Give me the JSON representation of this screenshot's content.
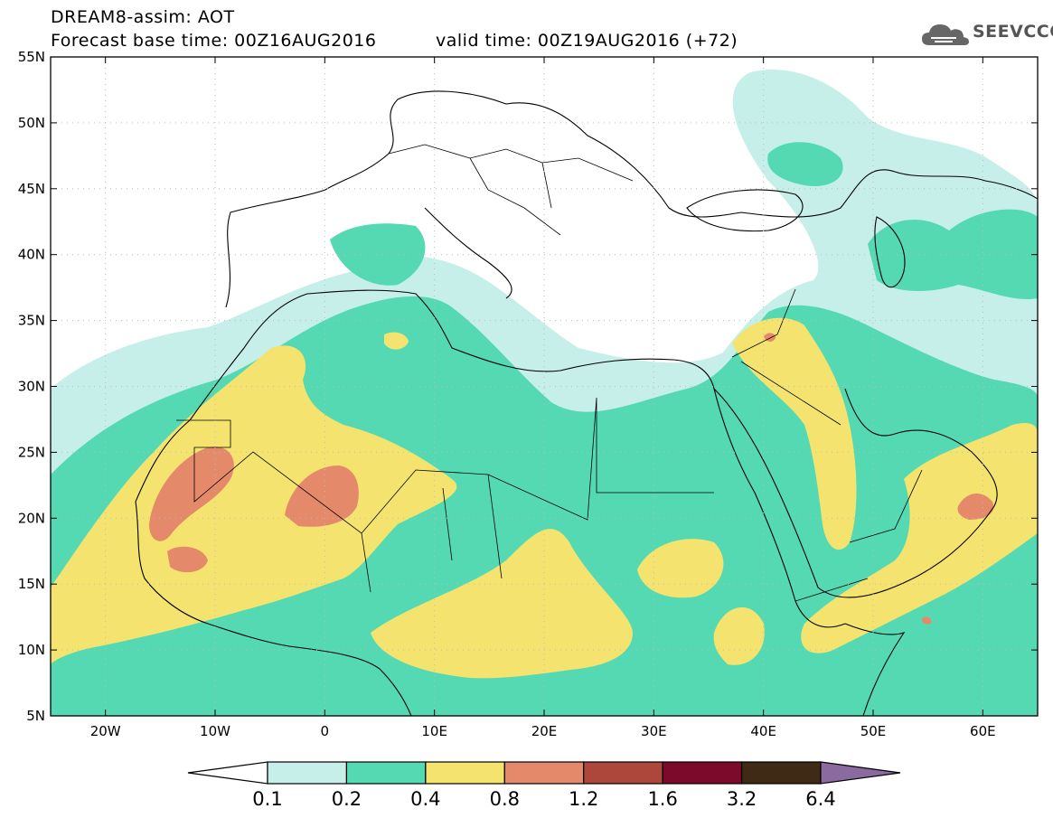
{
  "header": {
    "title_line1": "DREAM8-assim: AOT",
    "base_time": "Forecast base time: 00Z16AUG2016",
    "valid_time": "valid time: 00Z19AUG2016 (+72)"
  },
  "logo": {
    "text": "SEEVCCC",
    "icon": "cloud-icon"
  },
  "map": {
    "lon_range": [
      -25,
      65
    ],
    "lat_range": [
      5,
      55
    ],
    "lat_labels": [
      "5N",
      "10N",
      "15N",
      "20N",
      "25N",
      "30N",
      "35N",
      "40N",
      "45N",
      "50N",
      "55N"
    ],
    "lon_labels": [
      "20W",
      "10W",
      "0",
      "10E",
      "20E",
      "30E",
      "40E",
      "50E",
      "60E"
    ],
    "lat_values": [
      5,
      10,
      15,
      20,
      25,
      30,
      35,
      40,
      45,
      50,
      55
    ],
    "lon_values": [
      -20,
      -10,
      0,
      10,
      20,
      30,
      40,
      50,
      60
    ]
  },
  "colorbar": {
    "colors": [
      "#ffffff",
      "#c6efe9",
      "#55d9b3",
      "#f4e46f",
      "#e48a6a",
      "#ad473c",
      "#7c0a2a",
      "#3e2a15",
      "#8b6aa0"
    ],
    "labels": [
      "0.1",
      "0.2",
      "0.4",
      "0.8",
      "1.2",
      "1.6",
      "3.2",
      "6.4"
    ]
  }
}
